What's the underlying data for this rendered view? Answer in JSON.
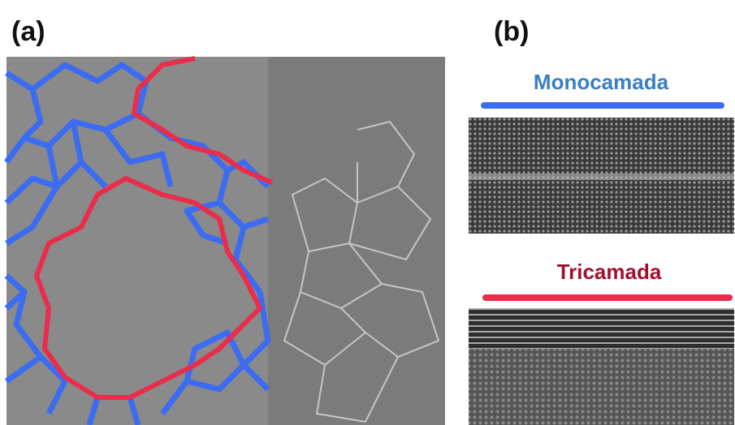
{
  "panel_a": {
    "label": "(a)"
  },
  "panel_b": {
    "label": "(b)",
    "top_caption": "Monocamada",
    "bottom_caption": "Tricamada"
  }
}
